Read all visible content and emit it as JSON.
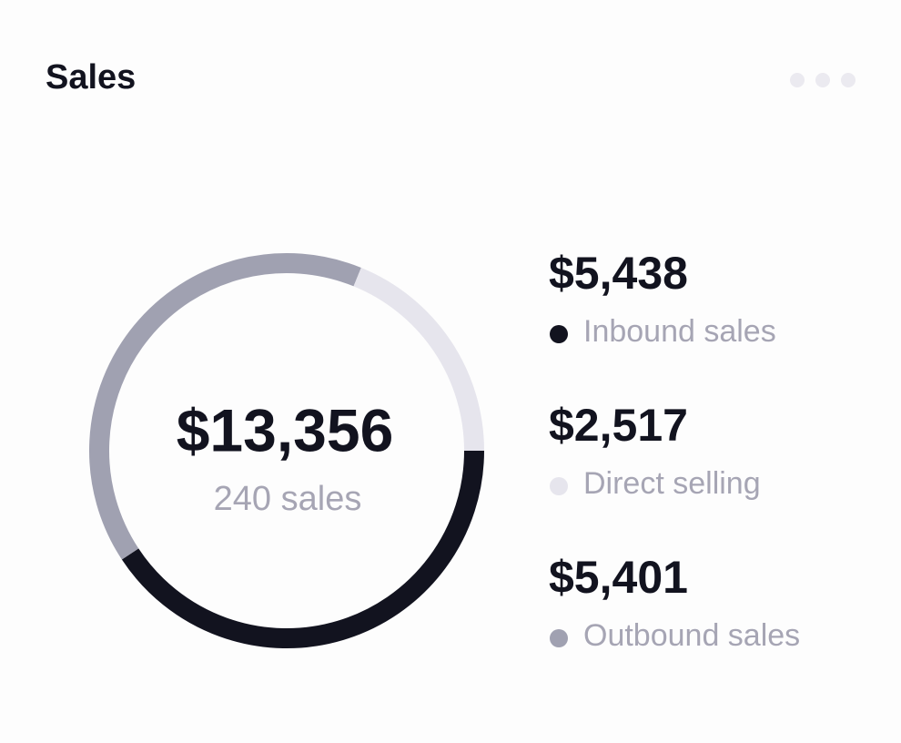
{
  "chart_data": {
    "type": "donut",
    "title": "Sales",
    "center_label": "$13,356",
    "center_sublabel": "240 sales",
    "categories": [
      "Inbound sales",
      "Direct selling",
      "Outbound sales"
    ],
    "values": [
      5438,
      2517,
      5401
    ],
    "value_labels": [
      "$5,438",
      "$2,517",
      "$5,401"
    ],
    "colors": [
      "#12131f",
      "#e6e5ed",
      "#a0a1b1"
    ]
  }
}
